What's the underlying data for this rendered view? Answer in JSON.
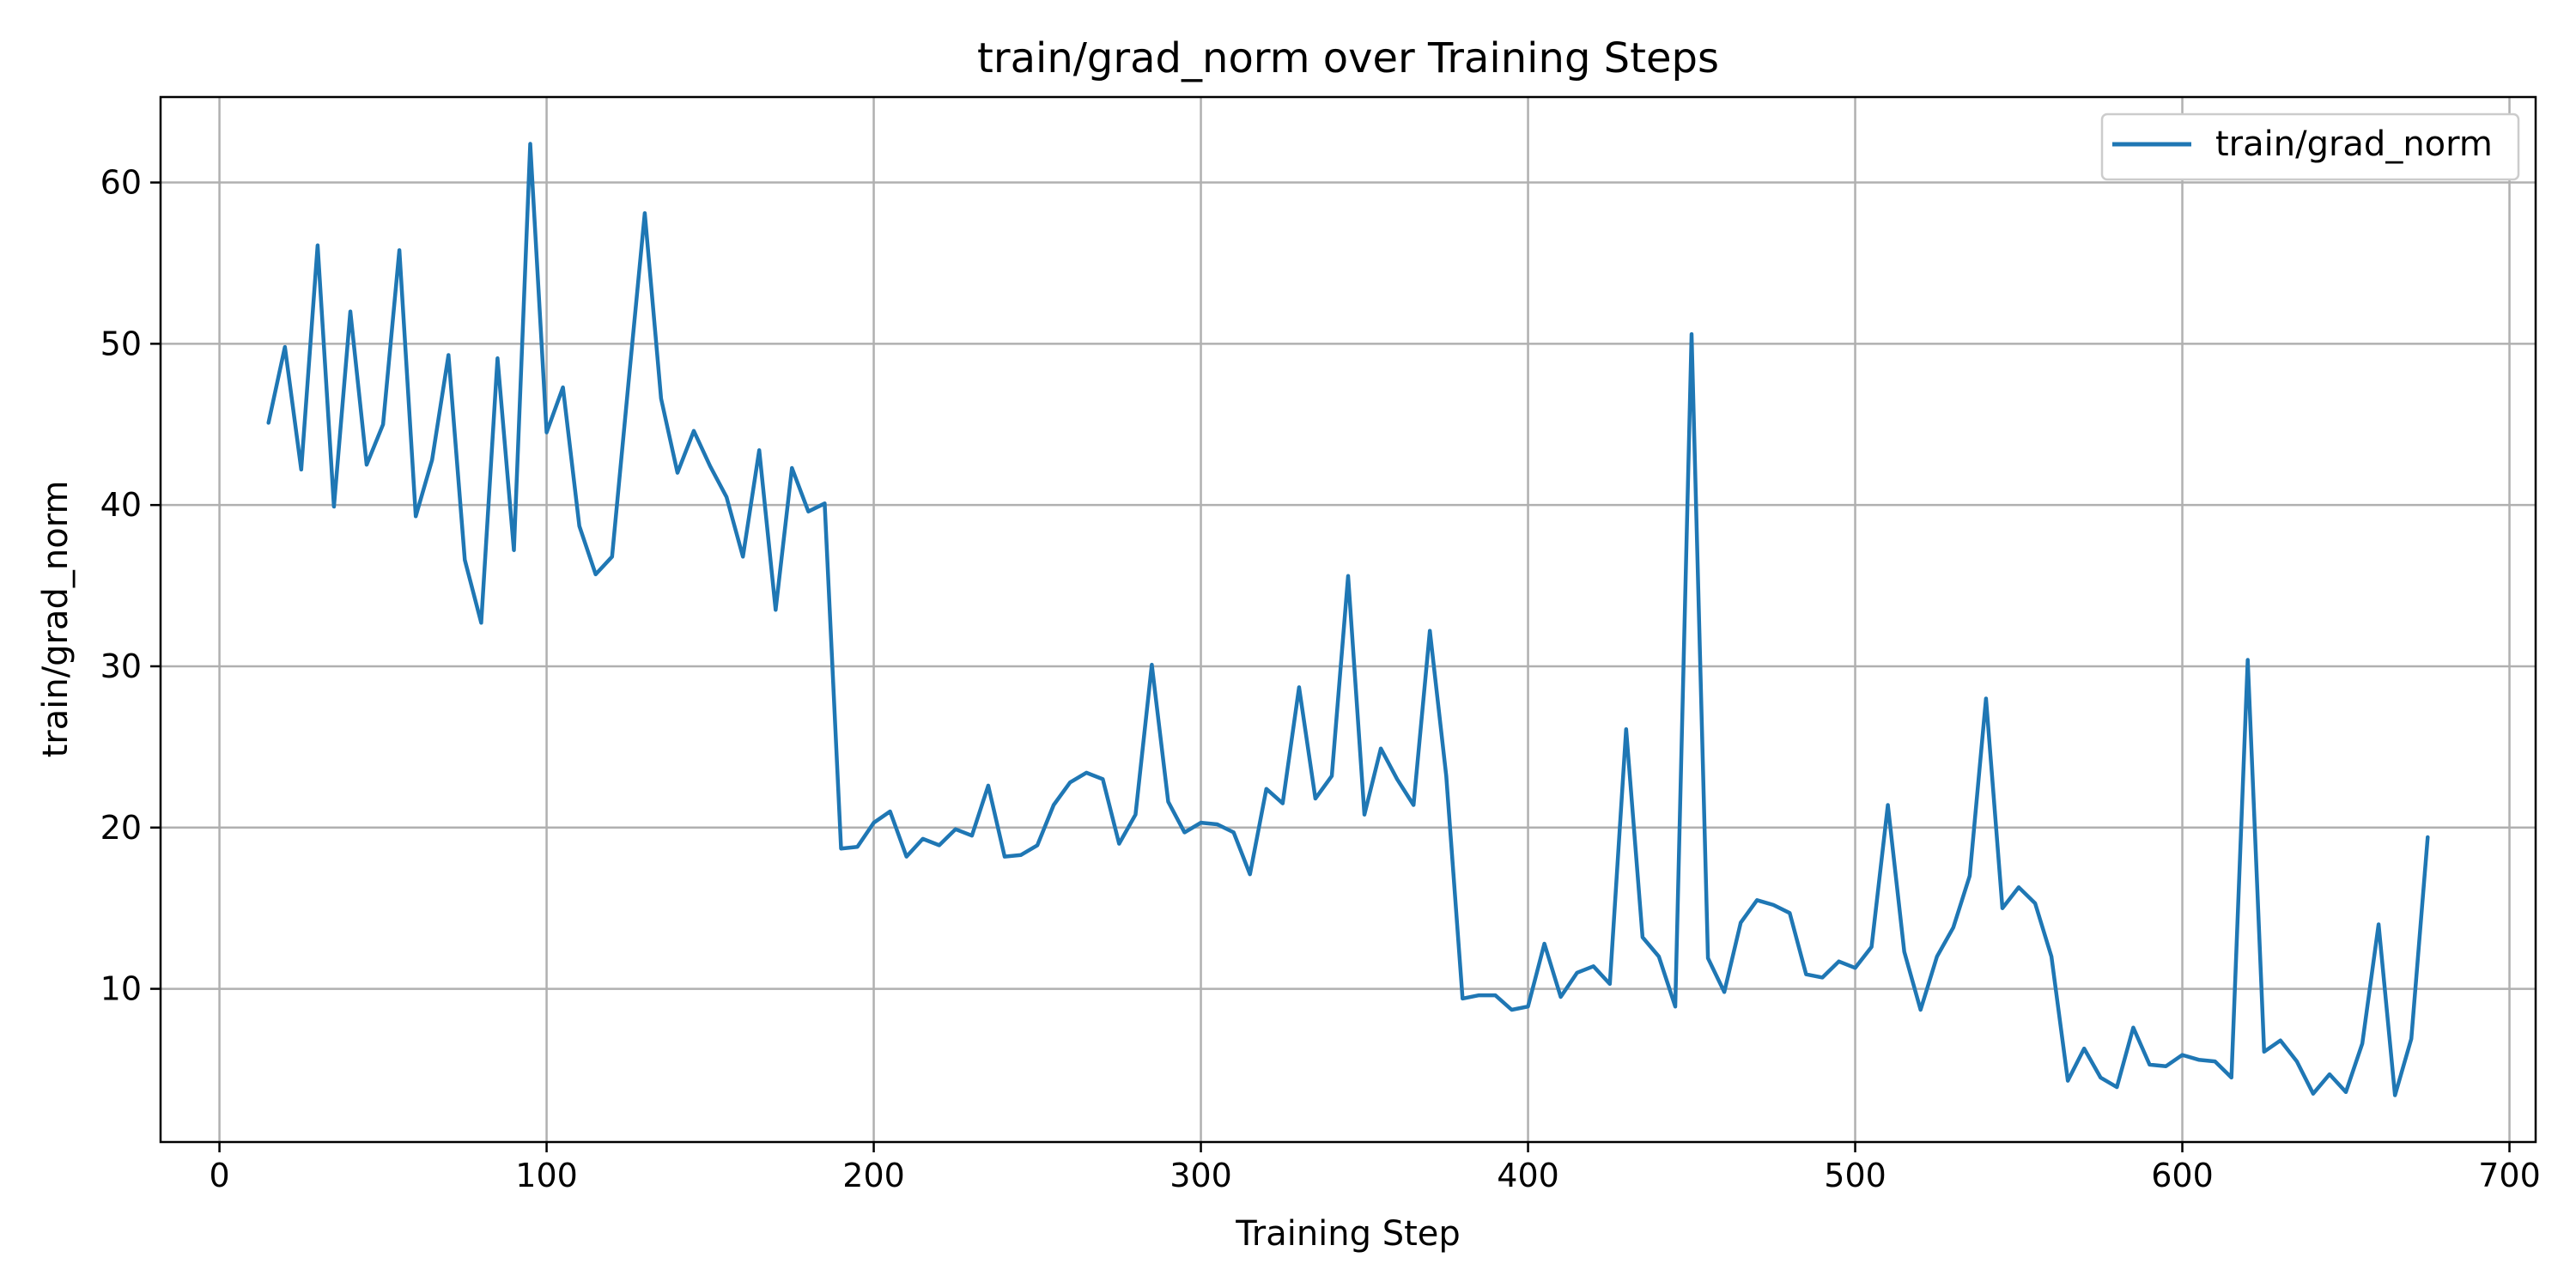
{
  "chart_data": {
    "type": "line",
    "title": "train/grad_norm over Training Steps",
    "xlabel": "Training Step",
    "ylabel": "train/grad_norm",
    "xlim": [
      -18,
      708
    ],
    "ylim": [
      0.5,
      65.3
    ],
    "xticks": [
      0,
      100,
      200,
      300,
      400,
      500,
      600,
      700
    ],
    "yticks": [
      10,
      20,
      30,
      40,
      50,
      60
    ],
    "grid": true,
    "legend_position": "top-right",
    "series": [
      {
        "name": "train/grad_norm",
        "color": "#1f77b4",
        "x": [
          15,
          20,
          25,
          30,
          35,
          40,
          45,
          50,
          55,
          60,
          65,
          70,
          75,
          80,
          85,
          90,
          95,
          100,
          105,
          110,
          115,
          120,
          125,
          130,
          135,
          140,
          145,
          150,
          155,
          160,
          165,
          170,
          175,
          180,
          185,
          190,
          195,
          200,
          205,
          210,
          215,
          220,
          225,
          230,
          235,
          240,
          245,
          250,
          255,
          260,
          265,
          270,
          275,
          280,
          285,
          290,
          295,
          300,
          305,
          310,
          315,
          320,
          325,
          330,
          335,
          340,
          345,
          350,
          355,
          360,
          365,
          370,
          375,
          380,
          385,
          390,
          395,
          400,
          405,
          410,
          415,
          420,
          425,
          430,
          435,
          440,
          445,
          450,
          455,
          460,
          465,
          470,
          475,
          480,
          485,
          490,
          495,
          500,
          505,
          510,
          515,
          520,
          525,
          530,
          535,
          540,
          545,
          550,
          555,
          560,
          565,
          570,
          575,
          580,
          585,
          590,
          595,
          600,
          605,
          610,
          615,
          620,
          625,
          630,
          635,
          640,
          645,
          650,
          655,
          660,
          665,
          670,
          675
        ],
        "y": [
          45.1,
          49.8,
          42.2,
          56.1,
          39.9,
          52.0,
          42.5,
          45.0,
          55.8,
          39.3,
          42.8,
          49.3,
          36.6,
          32.7,
          49.1,
          37.2,
          62.4,
          44.5,
          47.3,
          38.7,
          35.7,
          36.8,
          47.5,
          58.1,
          46.6,
          42.0,
          44.6,
          42.4,
          40.5,
          36.8,
          43.4,
          33.5,
          42.3,
          39.6,
          40.1,
          18.7,
          18.8,
          20.3,
          21.0,
          18.2,
          19.3,
          18.9,
          19.9,
          19.5,
          22.6,
          18.2,
          18.3,
          18.9,
          21.4,
          22.8,
          23.4,
          23.0,
          19.0,
          20.8,
          30.1,
          21.6,
          19.7,
          20.3,
          20.2,
          19.7,
          17.1,
          22.4,
          21.5,
          28.7,
          21.8,
          23.2,
          35.6,
          20.8,
          24.9,
          23.0,
          21.4,
          32.2,
          23.2,
          9.4,
          9.6,
          9.6,
          8.7,
          8.9,
          12.8,
          9.5,
          11.0,
          11.4,
          10.3,
          26.1,
          13.2,
          12.0,
          8.9,
          50.6,
          11.9,
          9.8,
          14.1,
          15.5,
          15.2,
          14.7,
          10.9,
          10.7,
          11.7,
          11.3,
          12.6,
          21.4,
          12.3,
          8.7,
          12.0,
          13.8,
          17.0,
          28.0,
          15.0,
          16.3,
          15.3,
          12.0,
          4.3,
          6.3,
          4.5,
          3.9,
          7.6,
          5.3,
          5.2,
          5.9,
          5.6,
          5.5,
          4.5,
          30.4,
          6.1,
          6.8,
          5.5,
          3.5,
          4.7,
          3.6,
          6.6,
          14.0,
          3.4,
          6.9,
          19.4
        ]
      }
    ]
  }
}
